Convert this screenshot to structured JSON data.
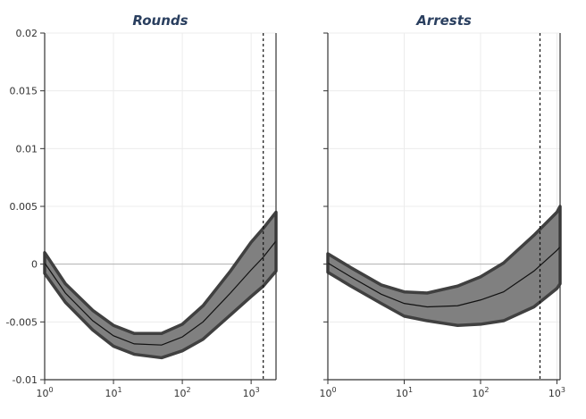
{
  "chart_data": [
    {
      "type": "area",
      "title": "Rounds",
      "xscale": "log",
      "xlim": [
        1,
        2300
      ],
      "ylim": [
        -0.01,
        0.02
      ],
      "grid": true,
      "x_tick_labels": [
        {
          "base": "10",
          "exp": "0",
          "value": 1
        },
        {
          "base": "10",
          "exp": "1",
          "value": 10
        },
        {
          "base": "10",
          "exp": "2",
          "value": 100
        },
        {
          "base": "10",
          "exp": "3",
          "value": 1000
        }
      ],
      "y_tick_labels": [
        {
          "label": "0.02",
          "value": 0.02
        },
        {
          "label": "0.015",
          "value": 0.015
        },
        {
          "label": "0.01",
          "value": 0.01
        },
        {
          "label": "0.005",
          "value": 0.005
        },
        {
          "label": "0",
          "value": 0
        },
        {
          "label": "-0.005",
          "value": -0.005
        },
        {
          "label": "-0.01",
          "value": -0.01
        }
      ],
      "zero_line": 0,
      "vline_dashed": 1500,
      "band": {
        "x": [
          1,
          2,
          5,
          10,
          20,
          50,
          100,
          200,
          500,
          1000,
          1500,
          2300
        ],
        "mid": [
          0.0001,
          -0.0025,
          -0.0049,
          -0.0062,
          -0.0069,
          -0.007,
          -0.0063,
          -0.005,
          -0.0025,
          -0.0005,
          0.0006,
          0.002
        ],
        "upper": [
          0.001,
          -0.0017,
          -0.004,
          -0.0053,
          -0.006,
          -0.006,
          -0.0052,
          -0.0036,
          -0.0006,
          0.0019,
          0.0031,
          0.0045
        ],
        "lower": [
          -0.0008,
          -0.0033,
          -0.0057,
          -0.0071,
          -0.0078,
          -0.0081,
          -0.0075,
          -0.0065,
          -0.0044,
          -0.0028,
          -0.0019,
          -0.0006
        ],
        "fill_color": "#808080",
        "edge_color": "#404040"
      }
    },
    {
      "type": "area",
      "title": "Arrests",
      "xscale": "log",
      "xlim": [
        1,
        1100
      ],
      "ylim": [
        -0.01,
        0.02
      ],
      "grid": true,
      "x_tick_labels": [
        {
          "base": "10",
          "exp": "0",
          "value": 1
        },
        {
          "base": "10",
          "exp": "1",
          "value": 10
        },
        {
          "base": "10",
          "exp": "2",
          "value": 100
        },
        {
          "base": "10",
          "exp": "3",
          "value": 1000
        }
      ],
      "zero_line": 0,
      "vline_dashed": 600,
      "band": {
        "x": [
          1,
          2,
          5,
          10,
          20,
          50,
          100,
          200,
          500,
          1000,
          1100
        ],
        "mid": [
          0.0001,
          -0.0011,
          -0.0026,
          -0.0034,
          -0.0037,
          -0.0036,
          -0.0031,
          -0.0024,
          -0.0006,
          0.0012,
          0.0015
        ],
        "upper": [
          0.0009,
          -0.0003,
          -0.0018,
          -0.0024,
          -0.0025,
          -0.0019,
          -0.0011,
          0.0001,
          0.0025,
          0.0045,
          0.005
        ],
        "lower": [
          -0.0007,
          -0.0019,
          -0.0034,
          -0.0045,
          -0.0049,
          -0.0053,
          -0.0052,
          -0.0049,
          -0.0037,
          -0.0021,
          -0.0017
        ],
        "fill_color": "#808080",
        "edge_color": "#404040"
      }
    }
  ]
}
